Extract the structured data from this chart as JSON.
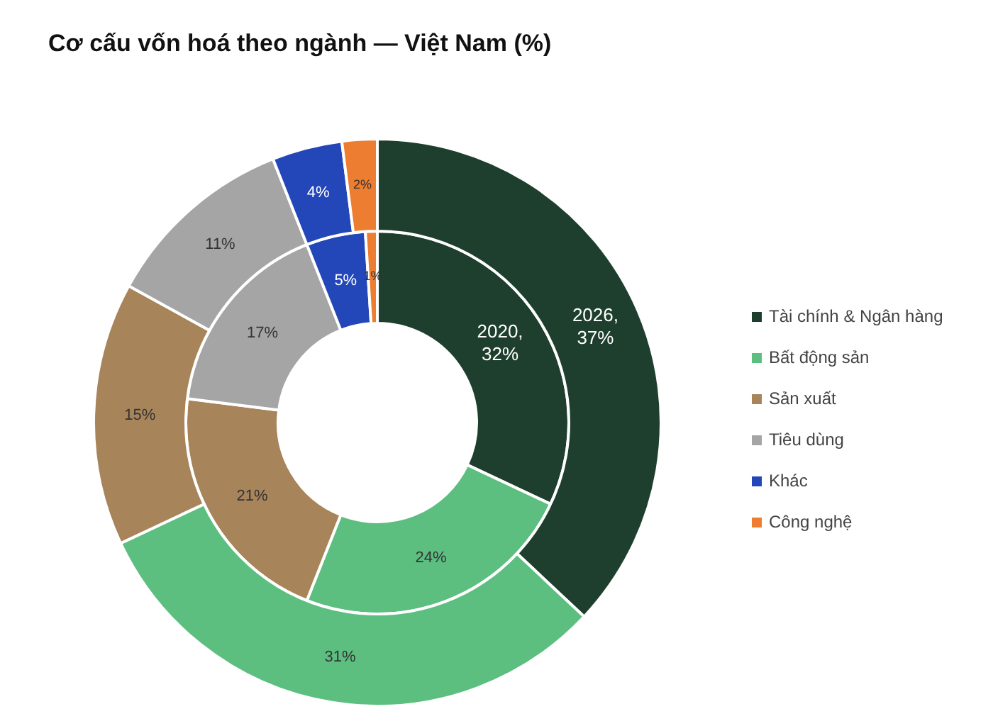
{
  "chart_data": {
    "type": "donut",
    "title": "Cơ cấu vốn hoá theo ngành — Việt Nam (%)",
    "categories": [
      "Tài chính & Ngân hàng",
      "Bất động sản",
      "Sản xuất",
      "Tiêu dùng",
      "Khác",
      "Công nghệ"
    ],
    "colors": [
      "#1e3f2e",
      "#5cbf80",
      "#a8845a",
      "#a5a5a5",
      "#2347b8",
      "#ed7d31"
    ],
    "series": [
      {
        "name": "2020,",
        "values": [
          32,
          24,
          21,
          17,
          5,
          1
        ],
        "value_labels": [
          "32%",
          "24%",
          "21%",
          "17%",
          "5%",
          "1%"
        ]
      },
      {
        "name": "2026,",
        "values": [
          37,
          31,
          15,
          11,
          4,
          2
        ],
        "value_labels": [
          "37%",
          "31%",
          "15%",
          "11%",
          "4%",
          "2%"
        ]
      }
    ],
    "legend": "right"
  }
}
